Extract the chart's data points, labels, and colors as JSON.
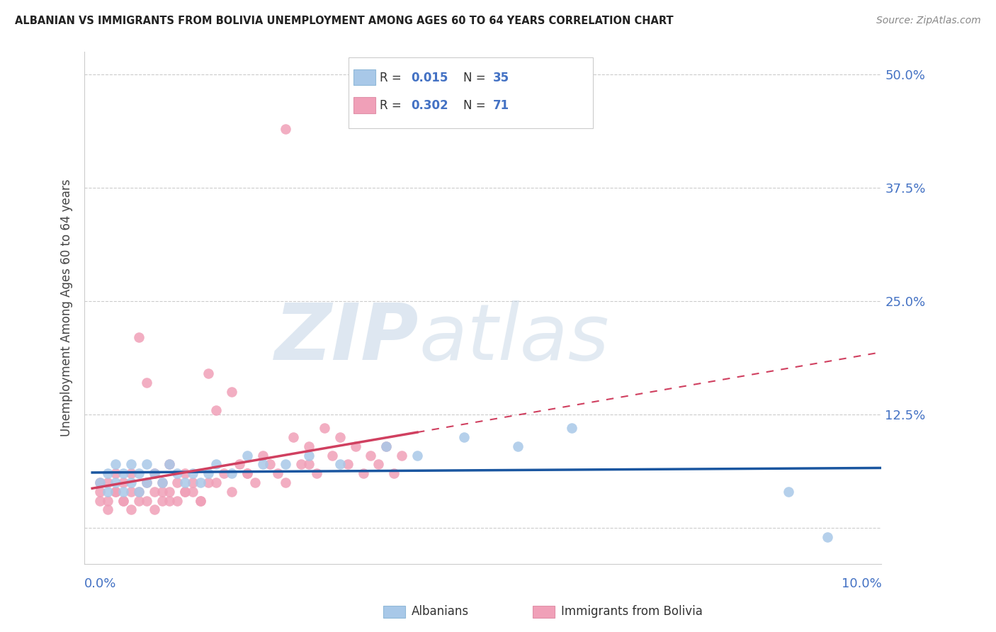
{
  "title": "ALBANIAN VS IMMIGRANTS FROM BOLIVIA UNEMPLOYMENT AMONG AGES 60 TO 64 YEARS CORRELATION CHART",
  "source": "Source: ZipAtlas.com",
  "ylabel": "Unemployment Among Ages 60 to 64 years",
  "color_albanian": "#a8c8e8",
  "color_bolivia": "#f0a0b8",
  "color_albanian_line": "#1a56a0",
  "color_bolivia_line": "#d04060",
  "watermark_zip": "ZIP",
  "watermark_atlas": "atlas",
  "ytick_vals": [
    0.0,
    0.125,
    0.25,
    0.375,
    0.5
  ],
  "ytick_labels": [
    "",
    "12.5%",
    "25.0%",
    "37.5%",
    "50.0%"
  ],
  "albanian_x": [
    0.001,
    0.002,
    0.002,
    0.003,
    0.003,
    0.004,
    0.004,
    0.005,
    0.005,
    0.006,
    0.006,
    0.007,
    0.007,
    0.008,
    0.009,
    0.01,
    0.011,
    0.012,
    0.013,
    0.014,
    0.015,
    0.016,
    0.018,
    0.02,
    0.022,
    0.025,
    0.028,
    0.032,
    0.038,
    0.042,
    0.048,
    0.055,
    0.062,
    0.09,
    0.095
  ],
  "albanian_y": [
    0.05,
    0.04,
    0.06,
    0.05,
    0.07,
    0.04,
    0.06,
    0.05,
    0.07,
    0.04,
    0.06,
    0.05,
    0.07,
    0.06,
    0.05,
    0.07,
    0.06,
    0.05,
    0.06,
    0.05,
    0.06,
    0.07,
    0.06,
    0.08,
    0.07,
    0.07,
    0.08,
    0.07,
    0.09,
    0.08,
    0.1,
    0.09,
    0.11,
    0.04,
    -0.01
  ],
  "bolivia_x": [
    0.001,
    0.001,
    0.002,
    0.002,
    0.003,
    0.003,
    0.004,
    0.004,
    0.005,
    0.005,
    0.006,
    0.006,
    0.007,
    0.007,
    0.008,
    0.008,
    0.009,
    0.009,
    0.01,
    0.01,
    0.011,
    0.011,
    0.012,
    0.012,
    0.013,
    0.013,
    0.014,
    0.015,
    0.015,
    0.016,
    0.017,
    0.018,
    0.019,
    0.02,
    0.021,
    0.022,
    0.023,
    0.024,
    0.025,
    0.026,
    0.027,
    0.028,
    0.029,
    0.03,
    0.031,
    0.032,
    0.033,
    0.034,
    0.035,
    0.036,
    0.037,
    0.038,
    0.039,
    0.04,
    0.001,
    0.002,
    0.003,
    0.004,
    0.005,
    0.006,
    0.007,
    0.008,
    0.009,
    0.01,
    0.012,
    0.014,
    0.016,
    0.018,
    0.02,
    0.025,
    0.028
  ],
  "bolivia_y": [
    0.05,
    0.04,
    0.03,
    0.05,
    0.04,
    0.06,
    0.03,
    0.05,
    0.04,
    0.06,
    0.21,
    0.03,
    0.05,
    0.16,
    0.04,
    0.06,
    0.03,
    0.05,
    0.04,
    0.07,
    0.03,
    0.05,
    0.04,
    0.06,
    0.05,
    0.04,
    0.03,
    0.17,
    0.05,
    0.13,
    0.06,
    0.15,
    0.07,
    0.06,
    0.05,
    0.08,
    0.07,
    0.06,
    0.44,
    0.1,
    0.07,
    0.09,
    0.06,
    0.11,
    0.08,
    0.1,
    0.07,
    0.09,
    0.06,
    0.08,
    0.07,
    0.09,
    0.06,
    0.08,
    0.03,
    0.02,
    0.04,
    0.03,
    0.02,
    0.04,
    0.03,
    0.02,
    0.04,
    0.03,
    0.04,
    0.03,
    0.05,
    0.04,
    0.06,
    0.05,
    0.07
  ]
}
